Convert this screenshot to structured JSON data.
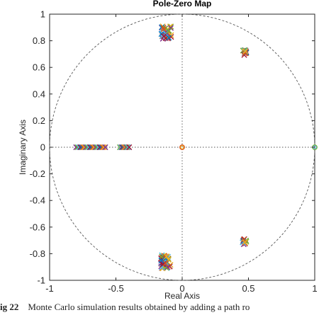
{
  "chart_data": {
    "type": "scatter",
    "title": "Pole-Zero Map",
    "xlabel": "Real Axis",
    "ylabel": "Imaginary Axis",
    "xlim": [
      -1,
      1
    ],
    "ylim": [
      -1,
      1
    ],
    "x_ticks": [
      "-1",
      "-0.5",
      "0",
      "0.5",
      "1"
    ],
    "y_ticks": [
      "-1",
      "-0.8",
      "-0.6",
      "-0.4",
      "-0.2",
      "0",
      "0.2",
      "0.4",
      "0.6",
      "0.8",
      "1"
    ],
    "x_tick_values": [
      -1,
      -0.5,
      0,
      0.5,
      1
    ],
    "y_tick_values": [
      -1,
      -0.8,
      -0.6,
      -0.4,
      -0.2,
      0,
      0.2,
      0.4,
      0.6,
      0.8,
      1
    ],
    "unit_circle": true,
    "grid": false,
    "pole_clusters": [
      {
        "center": [
          -0.12,
          0.86
        ],
        "spread": [
          0.04,
          0.05
        ],
        "count": 40
      },
      {
        "center": [
          -0.12,
          -0.86
        ],
        "spread": [
          0.04,
          0.05
        ],
        "count": 40
      },
      {
        "center": [
          0.47,
          0.71
        ],
        "spread": [
          0.015,
          0.02
        ],
        "count": 14
      },
      {
        "center": [
          0.47,
          -0.71
        ],
        "spread": [
          0.015,
          0.02
        ],
        "count": 14
      },
      {
        "range": [
          -0.8,
          -0.58
        ],
        "y": 0,
        "count": 22
      },
      {
        "range": [
          -0.47,
          -0.4
        ],
        "y": 0,
        "count": 10
      }
    ],
    "zeros": [
      [
        0,
        0
      ],
      [
        1,
        0
      ]
    ],
    "marker_colors": [
      "#0072BD",
      "#D95319",
      "#EDB120",
      "#7E2F8E",
      "#77AC30",
      "#4DBEEE",
      "#A2142F"
    ]
  },
  "caption": {
    "label": "ig 22",
    "text": "Monte Carlo simulation results obtained by adding a path ro"
  }
}
